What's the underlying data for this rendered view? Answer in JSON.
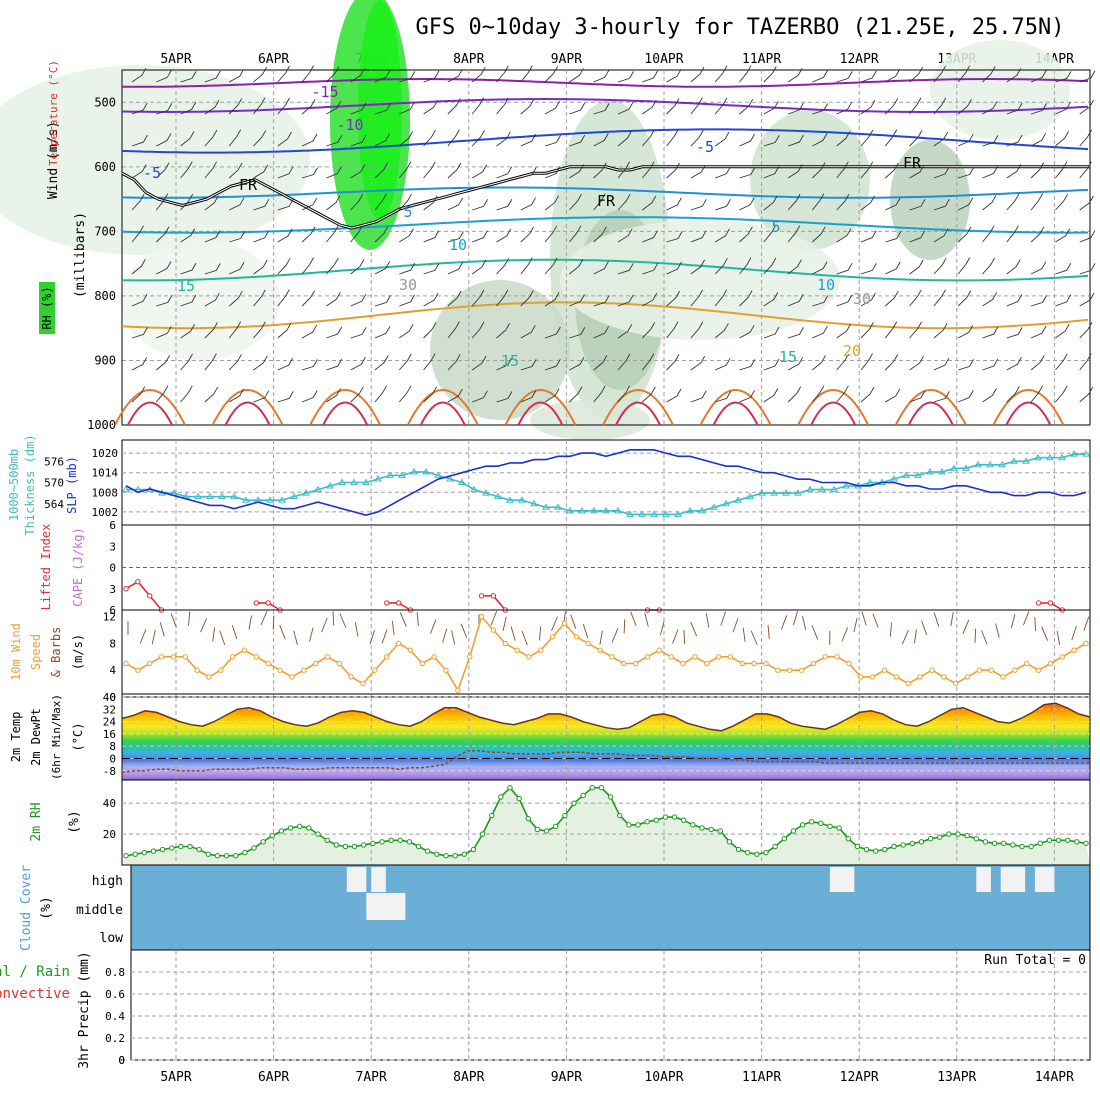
{
  "title": "GFS 0~10day 3-hourly for TAZERBO (21.25E, 25.75N)",
  "date_labels": [
    "5APR",
    "6APR",
    "7APR",
    "8APR",
    "9APR",
    "10APR",
    "11APR",
    "12APR",
    "13APR",
    "14APR"
  ],
  "side_labels": {
    "wind": "Wind (m/s)",
    "temperature": "Temperature (°C)",
    "rh": "RH (%)",
    "millibars": "(millibars)",
    "slp": "SLP (mb)",
    "thickness": "Thickness (dm)",
    "thickness_title": "1000~500mb",
    "lifted": "Lifted Index",
    "cape": "CAPE (J/kg)",
    "wind10_a": "10m Wind",
    "wind10_b": "Speed",
    "wind10_c": "& Barbs",
    "wind10_unit": "(m/s)",
    "temp_a": "2m Temp",
    "temp_b": "2m DewPt",
    "temp_c": "(6hr Min/Max)",
    "temp_unit": "(°C)",
    "rh_a": "2m RH",
    "rh_unit": "(%)",
    "cloud_a": "Cloud Cover",
    "cloud_unit": "(%)",
    "precip_a": "tal / Rain",
    "precip_b": "Convective",
    "precip_c": "3hr Precip (mm)",
    "run_total": "Run Total = 0"
  },
  "colors": {
    "frame": "#000000",
    "grid": "#a0a0a0",
    "slp": "#1a2fd6",
    "thickness": "#3fbcc8",
    "lifted": "#e03030",
    "wind10": "#f0a030",
    "rh2m_line": "#1e9a1e",
    "cloud_bg": "#6baed6",
    "dewpt": "#8b4a2b"
  },
  "chart_data": [
    {
      "type": "line",
      "name": "upper-air",
      "ylabel": "(millibars)",
      "y_ticks": [
        500,
        600,
        700,
        800,
        900,
        1000
      ],
      "ylim": [
        450,
        1000
      ],
      "x_ticks": [
        "5APR",
        "6APR",
        "7APR",
        "8APR",
        "9APR",
        "10APR",
        "11APR",
        "12APR",
        "13APR",
        "14APR"
      ],
      "contour_labels": [
        "-15",
        "-10",
        "-5",
        "-5",
        "FR",
        "FR",
        "FR",
        "5",
        "5",
        "10",
        "10",
        "15",
        "15",
        "15",
        "20",
        "30",
        "30"
      ],
      "freezing_level_mb": [
        610,
        620,
        640,
        650,
        655,
        660,
        655,
        650,
        640,
        630,
        625,
        620,
        630,
        640,
        650,
        660,
        670,
        680,
        690,
        695,
        690,
        685,
        675,
        665,
        660,
        655,
        650,
        645,
        640,
        635,
        630,
        625,
        620,
        615,
        610,
        610,
        605,
        600,
        600,
        600,
        600,
        605,
        605,
        600,
        600,
        600,
        600,
        600,
        600,
        600,
        600,
        600,
        600,
        600,
        600,
        600,
        600,
        600,
        600,
        600,
        600,
        600,
        600,
        600,
        600,
        600,
        600,
        600,
        600,
        600,
        600,
        600,
        600,
        600,
        600,
        600,
        600,
        600,
        600,
        600,
        600
      ]
    },
    {
      "type": "line",
      "name": "slp-thickness",
      "left_ticks": [
        564,
        570,
        576
      ],
      "right_ticks": [
        1002,
        1008,
        1014,
        1020
      ],
      "series": [
        {
          "name": "SLP (mb)",
          "axis": "right",
          "values": [
            1010,
            1008,
            1009,
            1008,
            1007,
            1006,
            1005,
            1004,
            1004,
            1003,
            1004,
            1005,
            1004,
            1003,
            1003,
            1004,
            1005,
            1004,
            1003,
            1002,
            1001,
            1002,
            1004,
            1006,
            1008,
            1010,
            1012,
            1013,
            1014,
            1015,
            1016,
            1016,
            1017,
            1017,
            1018,
            1018,
            1019,
            1019,
            1020,
            1020,
            1019,
            1020,
            1021,
            1021,
            1021,
            1020,
            1019,
            1019,
            1018,
            1017,
            1016,
            1016,
            1015,
            1014,
            1014,
            1013,
            1012,
            1012,
            1011,
            1011,
            1011,
            1010,
            1010,
            1011,
            1011,
            1010,
            1010,
            1009,
            1009,
            1010,
            1010,
            1009,
            1008,
            1008,
            1007,
            1007,
            1008,
            1008,
            1007,
            1007,
            1008
          ]
        },
        {
          "name": "Thickness (dm)",
          "axis": "left",
          "values": [
            568,
            568,
            568,
            567,
            567,
            566,
            566,
            566,
            566,
            566,
            565,
            565,
            565,
            565,
            566,
            567,
            568,
            569,
            570,
            570,
            570,
            571,
            572,
            572,
            573,
            573,
            572,
            571,
            570,
            568,
            567,
            566,
            565,
            565,
            564,
            563,
            563,
            562,
            562,
            562,
            562,
            562,
            561,
            561,
            561,
            561,
            561,
            562,
            562,
            563,
            564,
            565,
            566,
            567,
            567,
            567,
            567,
            568,
            568,
            568,
            569,
            569,
            570,
            570,
            571,
            572,
            572,
            573,
            573,
            574,
            574,
            575,
            575,
            575,
            576,
            576,
            577,
            577,
            577,
            578,
            578
          ]
        }
      ]
    },
    {
      "type": "line",
      "name": "lifted-cape",
      "y_ticks": [
        -6,
        -3,
        0,
        3,
        6
      ],
      "ylim": [
        6,
        -6
      ],
      "series": [
        {
          "name": "Lifted Index",
          "values": [
            3,
            2,
            4,
            6,
            null,
            null,
            null,
            null,
            null,
            null,
            null,
            5,
            5,
            6,
            null,
            null,
            null,
            null,
            null,
            null,
            null,
            null,
            5,
            5,
            6,
            null,
            null,
            null,
            null,
            null,
            4,
            4,
            6,
            null,
            null,
            null,
            null,
            null,
            null,
            null,
            null,
            null,
            null,
            null,
            6,
            6,
            null,
            null,
            null,
            null,
            null,
            null,
            null,
            null,
            null,
            null,
            null,
            null,
            null,
            null,
            null,
            null,
            null,
            null,
            null,
            null,
            null,
            null,
            null,
            null,
            null,
            null,
            null,
            null,
            null,
            null,
            null,
            5,
            5,
            6,
            null,
            null
          ]
        }
      ]
    },
    {
      "type": "line",
      "name": "10m-wind",
      "y_ticks": [
        0,
        4,
        8,
        12
      ],
      "ylim": [
        0,
        13
      ],
      "series": [
        {
          "name": "10m Wind Speed",
          "values": [
            5,
            4,
            5,
            6,
            6,
            6,
            4,
            3,
            4,
            6,
            7,
            6,
            5,
            4,
            3,
            4,
            5,
            6,
            5,
            3,
            2,
            4,
            6,
            8,
            7,
            5,
            6,
            4,
            1,
            6,
            12,
            10,
            8,
            7,
            6,
            7,
            9,
            11,
            9,
            8,
            7,
            6,
            5,
            5,
            6,
            7,
            6,
            5,
            6,
            5,
            6,
            6,
            5,
            5,
            5,
            4,
            4,
            4,
            5,
            6,
            6,
            5,
            3,
            3,
            4,
            3,
            2,
            3,
            4,
            3,
            2,
            3,
            4,
            4,
            3,
            4,
            5,
            4,
            5,
            6,
            7,
            8
          ]
        }
      ]
    },
    {
      "type": "area",
      "name": "2m-temp-dewpt",
      "y_ticks": [
        -8,
        0,
        8,
        16,
        24,
        32,
        40
      ],
      "ylim": [
        -14,
        40
      ],
      "series": [
        {
          "name": "2m Temp",
          "values": [
            26,
            28,
            31,
            30,
            27,
            24,
            22,
            21,
            24,
            28,
            32,
            33,
            31,
            27,
            24,
            22,
            21,
            23,
            27,
            30,
            31,
            30,
            27,
            24,
            22,
            21,
            24,
            29,
            33,
            33,
            30,
            27,
            25,
            23,
            22,
            24,
            26,
            29,
            29,
            27,
            24,
            22,
            20,
            19,
            20,
            24,
            28,
            29,
            27,
            23,
            21,
            19,
            18,
            21,
            25,
            29,
            29,
            27,
            23,
            21,
            20,
            19,
            22,
            26,
            30,
            31,
            29,
            25,
            22,
            21,
            24,
            28,
            32,
            33,
            30,
            27,
            24,
            23,
            26,
            30,
            35,
            36,
            33,
            29,
            27
          ]
        },
        {
          "name": "2m DewPt",
          "values": [
            -9,
            -8,
            -8,
            -7,
            -7,
            -8,
            -8,
            -8,
            -7,
            -7,
            -7,
            -7,
            -6,
            -6,
            -6,
            -7,
            -7,
            -7,
            -6,
            -6,
            -6,
            -6,
            -6,
            -6,
            -7,
            -6,
            -6,
            -5,
            -4,
            1,
            5,
            5,
            4,
            4,
            3,
            3,
            3,
            3,
            4,
            4,
            4,
            3,
            3,
            3,
            2,
            2,
            2,
            1,
            1,
            1,
            0,
            0,
            0,
            -1,
            -1,
            -2,
            -2,
            -2,
            -2,
            -2,
            -2,
            -3,
            -3,
            -3,
            -3,
            -3,
            -3,
            -3,
            -3,
            -3,
            -3,
            -3,
            -3,
            -3,
            -3,
            -3,
            -3,
            -3,
            -3,
            -3,
            -3,
            -3,
            -3,
            -3,
            -3
          ]
        }
      ]
    },
    {
      "type": "area",
      "name": "2m-rh",
      "y_ticks": [
        20,
        40
      ],
      "ylim": [
        0,
        55
      ],
      "series": [
        {
          "name": "2m RH",
          "values": [
            6,
            7,
            8,
            9,
            10,
            11,
            12,
            12,
            10,
            7,
            6,
            6,
            6,
            8,
            11,
            15,
            19,
            22,
            24,
            25,
            24,
            20,
            16,
            13,
            12,
            12,
            13,
            14,
            15,
            16,
            16,
            15,
            12,
            9,
            7,
            6,
            6,
            7,
            10,
            20,
            32,
            44,
            50,
            43,
            30,
            23,
            22,
            25,
            32,
            40,
            45,
            50,
            50,
            44,
            32,
            26,
            26,
            28,
            29,
            31,
            31,
            29,
            26,
            24,
            23,
            22,
            15,
            10,
            8,
            7,
            8,
            12,
            17,
            22,
            26,
            28,
            27,
            25,
            24,
            17,
            12,
            10,
            9,
            10,
            12,
            13,
            14,
            15,
            17,
            18,
            20,
            20,
            19,
            17,
            15,
            14,
            14,
            13,
            12,
            12,
            14,
            16,
            16,
            16,
            15,
            14
          ]
        }
      ]
    },
    {
      "type": "bar",
      "name": "cloud-cover",
      "y_ticks": [
        "high",
        "middle",
        "low"
      ],
      "cells": [
        {
          "layer": "high",
          "from": 2.75,
          "to": 2.95
        },
        {
          "layer": "high",
          "from": 3.0,
          "to": 3.15
        },
        {
          "layer": "middle",
          "from": 2.95,
          "to": 3.35
        },
        {
          "layer": "high",
          "from": 7.7,
          "to": 7.95
        },
        {
          "layer": "high",
          "from": 9.2,
          "to": 9.35
        },
        {
          "layer": "high",
          "from": 9.45,
          "to": 9.7
        },
        {
          "layer": "high",
          "from": 9.8,
          "to": 10.0
        }
      ]
    },
    {
      "type": "bar",
      "name": "precip",
      "y_ticks": [
        0,
        0.2,
        0.4,
        0.6,
        0.8
      ],
      "ylim": [
        0,
        1
      ],
      "values": []
    }
  ]
}
